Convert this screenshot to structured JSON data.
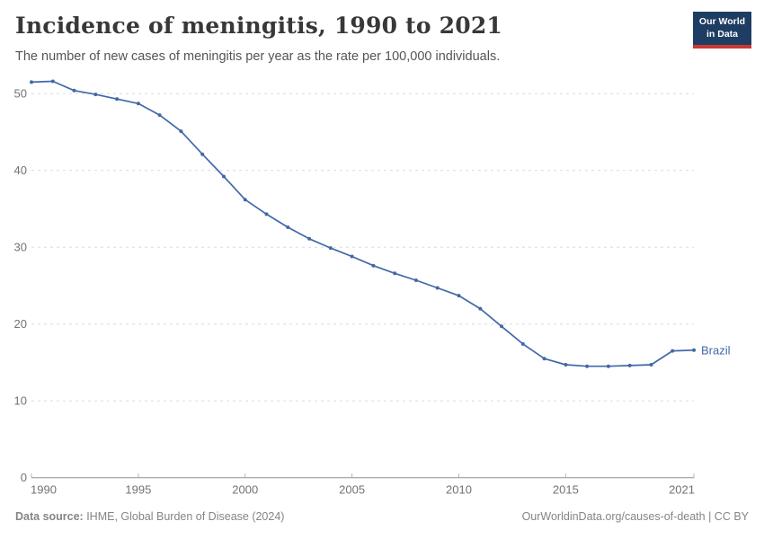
{
  "header": {
    "title": "Incidence of meningitis, 1990 to 2021",
    "subtitle": "The number of new cases of meningitis per year as the rate per 100,000 individuals.",
    "logo": {
      "line1": "Our World",
      "line2": "in Data",
      "bg_color": "#1d3d63",
      "accent_color": "#cd3731"
    }
  },
  "chart_data": {
    "type": "line",
    "title": "Incidence of meningitis, 1990 to 2021",
    "xlabel": "",
    "ylabel": "",
    "x": [
      1990,
      1991,
      1992,
      1993,
      1994,
      1995,
      1996,
      1997,
      1998,
      1999,
      2000,
      2001,
      2002,
      2003,
      2004,
      2005,
      2006,
      2007,
      2008,
      2009,
      2010,
      2011,
      2012,
      2013,
      2014,
      2015,
      2016,
      2017,
      2018,
      2019,
      2020,
      2021
    ],
    "series": [
      {
        "name": "Brazil",
        "color": "#4268a7",
        "values": [
          51.5,
          51.6,
          50.4,
          49.9,
          49.3,
          48.7,
          47.2,
          45.1,
          42.1,
          39.2,
          36.2,
          34.3,
          32.6,
          31.1,
          29.9,
          28.8,
          27.6,
          26.6,
          25.7,
          24.7,
          23.7,
          22.0,
          19.7,
          17.4,
          15.5,
          14.7,
          14.5,
          14.5,
          14.6,
          14.7,
          16.5,
          16.6
        ]
      }
    ],
    "x_ticks": [
      1990,
      1995,
      2000,
      2005,
      2010,
      2015,
      2021
    ],
    "y_ticks": [
      0,
      10,
      20,
      30,
      40,
      50
    ],
    "xlim": [
      1990,
      2021
    ],
    "ylim": [
      0,
      52
    ],
    "grid": "horizontal-dashed",
    "legend_position": "end-of-line-label",
    "colors": {
      "grid": "#dcdcdc",
      "axis": "#8f8f8f",
      "tick_text": "#737373",
      "marker_radius": 2
    }
  },
  "footer": {
    "source_label": "Data source:",
    "source_text": " IHME, Global Burden of Disease (2024)",
    "credit_text": "OurWorldinData.org/causes-of-death | CC BY"
  }
}
